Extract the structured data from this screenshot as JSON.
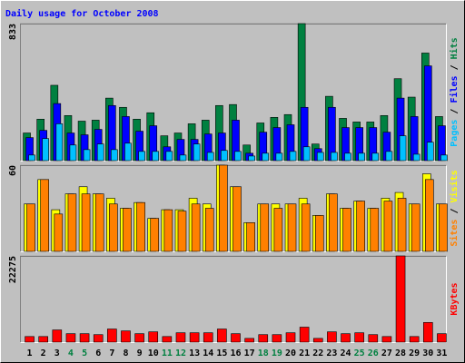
{
  "chart_data": {
    "type": "bar",
    "title": "Daily usage for October 2008",
    "categories": [
      "1",
      "2",
      "3",
      "4",
      "5",
      "6",
      "7",
      "8",
      "9",
      "10",
      "11",
      "12",
      "13",
      "14",
      "15",
      "16",
      "17",
      "18",
      "19",
      "20",
      "21",
      "22",
      "23",
      "24",
      "25",
      "26",
      "27",
      "28",
      "29",
      "30",
      "31"
    ],
    "highlight": [
      "4",
      "5",
      "11",
      "12",
      "18",
      "19",
      "25",
      "26"
    ],
    "highlight_color": "#008040",
    "legend_separator": " / ",
    "panels": [
      {
        "ylim": [
          0,
          833
        ],
        "yticks": [
          833
        ],
        "series": [
          {
            "name": "Hits",
            "color": "#008040",
            "values": [
              168,
              252,
              458,
              274,
              240,
              246,
              380,
              324,
              252,
              291,
              151,
              168,
              224,
              246,
              335,
              341,
              95,
              229,
              263,
              280,
              833,
              101,
              391,
              257,
              235,
              235,
              274,
              498,
              386,
              654,
              268
            ]
          },
          {
            "name": "Files",
            "color": "#0000ff",
            "values": [
              140,
              184,
              347,
              168,
              157,
              190,
              335,
              268,
              179,
              212,
              84,
              129,
              129,
              162,
              168,
              246,
              45,
              173,
              201,
              218,
              324,
              73,
              324,
              201,
              201,
              201,
              173,
              380,
              268,
              576,
              212
            ]
          },
          {
            "name": "Pages",
            "color": "#00c0ff",
            "values": [
              34,
              134,
              224,
              95,
              67,
              101,
              67,
              106,
              56,
              56,
              56,
              34,
              101,
              50,
              62,
              56,
              28,
              45,
              45,
              56,
              84,
              50,
              50,
              45,
              45,
              45,
              56,
              151,
              39,
              112,
              34
            ]
          }
        ]
      },
      {
        "ylim": [
          0,
          60
        ],
        "yticks": [
          60
        ],
        "series": [
          {
            "name": "Visits",
            "color": "#ffff00",
            "values": [
              33,
              50,
              29,
              40,
              45,
              40,
              37,
              30,
              34,
              23,
              29,
              29,
              37,
              33,
              60,
              45,
              20,
              33,
              33,
              33,
              37,
              25,
              40,
              30,
              35,
              30,
              37,
              41,
              33,
              54,
              33
            ]
          },
          {
            "name": "Sites",
            "color": "#ff8000",
            "values": [
              33,
              50,
              26,
              40,
              40,
              40,
              33,
              30,
              34,
              23,
              29,
              28,
              33,
              30,
              60,
              45,
              20,
              33,
              30,
              33,
              33,
              25,
              40,
              30,
              35,
              30,
              35,
              37,
              33,
              50,
              33
            ]
          }
        ]
      },
      {
        "ylim": [
          0,
          22275
        ],
        "yticks": [
          22275
        ],
        "series": [
          {
            "name": "KBytes",
            "color": "#ff0000",
            "values": [
              1450,
              1450,
              3150,
              2180,
              2180,
              1940,
              3390,
              2900,
              2180,
              2660,
              1450,
              2420,
              2420,
              2420,
              3390,
              2180,
              970,
              1940,
              1940,
              2420,
              3870,
              970,
              2660,
              2180,
              2420,
              1940,
              1450,
              22275,
              1450,
              5080,
              2180
            ]
          }
        ]
      }
    ]
  }
}
